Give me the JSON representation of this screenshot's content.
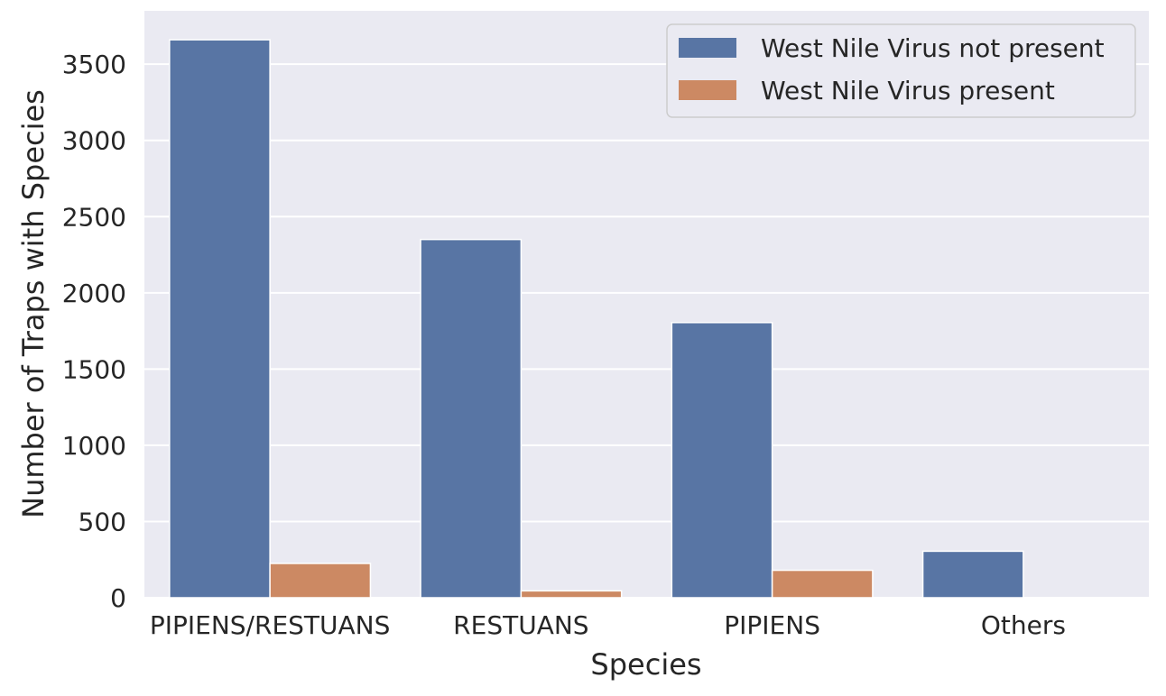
{
  "chart_data": {
    "type": "bar",
    "title": "",
    "xlabel": "Species",
    "ylabel": "Number of Traps with Species",
    "categories": [
      "PIPIENS/RESTUANS",
      "RESTUANS",
      "PIPIENS",
      "Others"
    ],
    "series": [
      {
        "name": "West Nile Virus not present",
        "color": "#5875A4",
        "values": [
          3660,
          2350,
          1805,
          305
        ]
      },
      {
        "name": "West Nile Virus present",
        "color": "#CC8963",
        "values": [
          225,
          45,
          180,
          0
        ]
      }
    ],
    "ylim": [
      0,
      3850
    ],
    "yticks": [
      0,
      500,
      1000,
      1500,
      2000,
      2500,
      3000,
      3500
    ],
    "grid": true,
    "legend_position": "top-right",
    "background": "#EAEAF2"
  }
}
